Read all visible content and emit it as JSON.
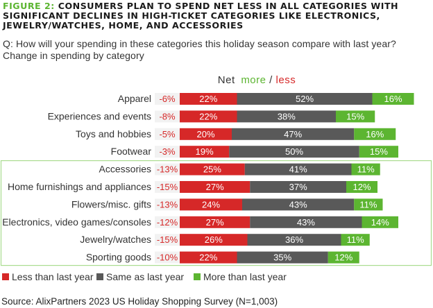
{
  "title": {
    "lead": "FIGURE 2:",
    "rest": "CONSUMERS PLAN TO SPEND NET LESS IN ALL CATEGORIES WITH SIGNIFICANT DECLINES IN HIGH-TICKET CATEGORIES LIKE ELECTRONICS, JEWELRY/WATCHES, HOME, AND ACCESSORIES"
  },
  "subtitle": {
    "question": "Q: How will your spending in these categories this holiday season compare with last year?",
    "note": "Change in spending by category"
  },
  "source": "Source: AlixPartners 2023 US Holiday Shopping Survey (N=1,003)",
  "colors": {
    "less": "#d62828",
    "same": "#595959",
    "more": "#5cb531",
    "net_box": "#f2f2f2",
    "highlight_border": "#a9dc8f"
  },
  "chart_data": {
    "type": "bar",
    "stacked": true,
    "orientation": "horizontal",
    "net_header": {
      "word": "Net",
      "more": "more",
      "sep": "/",
      "less": "less"
    },
    "categories": [
      "Apparel",
      "Experiences and events",
      "Toys and hobbies",
      "Footwear",
      "Accessories",
      "Home furnishings and appliances",
      "Flowers/misc. gifts",
      "Electronics, video games/consoles",
      "Jewelry/watches",
      "Sporting goods"
    ],
    "net": [
      "-6%",
      "-8%",
      "-5%",
      "-3%",
      "-13%",
      "-15%",
      "-13%",
      "-12%",
      "-15%",
      "-10%"
    ],
    "series": [
      {
        "name": "Less than last year",
        "key": "less",
        "values": [
          22,
          22,
          20,
          19,
          25,
          27,
          24,
          27,
          26,
          22
        ]
      },
      {
        "name": "Same as last year",
        "key": "same",
        "values": [
          52,
          38,
          47,
          50,
          41,
          37,
          43,
          43,
          36,
          35
        ]
      },
      {
        "name": "More than last year",
        "key": "more",
        "values": [
          16,
          15,
          16,
          15,
          11,
          12,
          11,
          14,
          11,
          12
        ]
      }
    ],
    "highlighted_categories": [
      "Accessories",
      "Home furnishings and appliances",
      "Flowers/misc. gifts",
      "Electronics, video games/consoles",
      "Jewelry/watches",
      "Sporting goods"
    ],
    "legend_position": "bottom-left",
    "grid": false
  }
}
